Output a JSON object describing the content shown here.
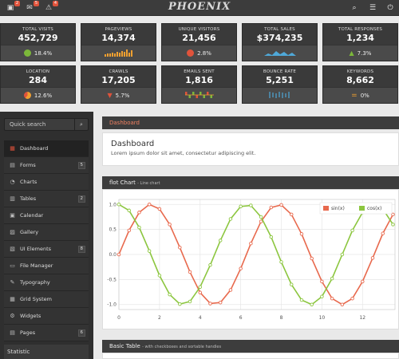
{
  "app": {
    "brand": "PHOENIX"
  },
  "topbar": {
    "left_icons": [
      {
        "name": "inbox-icon",
        "badge": "2"
      },
      {
        "name": "messages-icon",
        "badge": "5"
      },
      {
        "name": "notifications-icon",
        "badge": "4"
      }
    ],
    "right_icons": [
      "search-icon",
      "settings-icon",
      "logout-icon"
    ]
  },
  "stats": [
    {
      "label": "TOTAL VISITS",
      "value": "452,729",
      "foot": "18.4%",
      "indicator": "dot",
      "color": "#7cb83a"
    },
    {
      "label": "PAGEVIEWS",
      "value": "14,374",
      "foot": "",
      "indicator": "bars",
      "color": "#f0a030",
      "levels": [
        0.3,
        0.5,
        0.4,
        0.6,
        0.5,
        0.7,
        0.6,
        0.8,
        0.7,
        1.0,
        0.6,
        0.9
      ]
    },
    {
      "label": "UNIQUE VISITORS",
      "value": "21,456",
      "foot": "2.8%",
      "indicator": "dot",
      "color": "#e0533b"
    },
    {
      "label": "TOTAL SALES",
      "value": "$374,235",
      "foot": "",
      "indicator": "area",
      "color": "#4fa8d8"
    },
    {
      "label": "TOTAL RESPONSES",
      "value": "1,234",
      "foot": "7.3%",
      "indicator": "triangle-up",
      "color": "#7cb83a"
    },
    {
      "label": "LOCATION",
      "value": "284",
      "foot": "12.6%",
      "indicator": "pie",
      "color": "#f0a030"
    },
    {
      "label": "CRAWLS",
      "value": "17,205",
      "foot": "5.7%",
      "indicator": "triangle-down",
      "color": "#e0533b"
    },
    {
      "label": "EMAILS SENT",
      "value": "1,816",
      "foot": "",
      "indicator": "tristate",
      "color": "#7cb83a"
    },
    {
      "label": "BOUNCE RATE",
      "value": "5,251",
      "foot": "",
      "indicator": "candles",
      "color": "#4fa8d8"
    },
    {
      "label": "KEYWORDS",
      "value": "8,662",
      "foot": "0%",
      "indicator": "equal",
      "color": "#f0a030"
    }
  ],
  "sidebar": {
    "search_placeholder": "Quick search",
    "items": [
      {
        "label": "Dashboard",
        "icon": "dashboard-icon",
        "glyph": "▦",
        "count": "",
        "active": true
      },
      {
        "label": "Forms",
        "icon": "forms-icon",
        "glyph": "▤",
        "count": "5",
        "active": false
      },
      {
        "label": "Charts",
        "icon": "charts-icon",
        "glyph": "◔",
        "count": "",
        "active": false
      },
      {
        "label": "Tables",
        "icon": "tables-icon",
        "glyph": "▥",
        "count": "2",
        "active": false
      },
      {
        "label": "Calendar",
        "icon": "calendar-icon",
        "glyph": "▣",
        "count": "",
        "active": false
      },
      {
        "label": "Gallery",
        "icon": "gallery-icon",
        "glyph": "▨",
        "count": "",
        "active": false
      },
      {
        "label": "UI Elements",
        "icon": "ui-elements-icon",
        "glyph": "▧",
        "count": "8",
        "active": false
      },
      {
        "label": "File Manager",
        "icon": "file-manager-icon",
        "glyph": "▭",
        "count": "",
        "active": false
      },
      {
        "label": "Typography",
        "icon": "typography-icon",
        "glyph": "✎",
        "count": "",
        "active": false
      },
      {
        "label": "Grid System",
        "icon": "grid-icon",
        "glyph": "▦",
        "count": "",
        "active": false
      },
      {
        "label": "Widgets",
        "icon": "widgets-icon",
        "glyph": "⚙",
        "count": "",
        "active": false
      },
      {
        "label": "Pages",
        "icon": "pages-icon",
        "glyph": "▤",
        "count": "6",
        "active": false
      }
    ],
    "statistic_label": "Statistic"
  },
  "breadcrumb": "Dashboard",
  "dashboard_panel": {
    "title": "Dashboard",
    "text": "Lorem ipsum dolor sit amet, consectetur adipiscing elit."
  },
  "chart_panel": {
    "title": "flot Chart",
    "subtitle": "- Line chart"
  },
  "table_panel": {
    "title": "Basic Table",
    "subtitle": "- with checkboxes and sortable handles"
  },
  "chart_data": {
    "type": "line",
    "title": "",
    "xlabel": "",
    "ylabel": "",
    "xlim": [
      0,
      13.6
    ],
    "ylim": [
      -1.1,
      1.1
    ],
    "xticks": [
      0,
      2,
      4,
      6,
      8,
      10,
      12
    ],
    "yticks": [
      1.0,
      0.5,
      0.0,
      -0.5,
      -1.0
    ],
    "ytick_labels": [
      "1.0",
      "0.5",
      "0.0",
      "-0.5",
      "-1.0"
    ],
    "grid": true,
    "legend": "top-right",
    "series": [
      {
        "name": "sin(x)",
        "color": "#e8694d",
        "x": [
          0,
          0.5,
          1,
          1.5,
          2,
          2.5,
          3,
          3.5,
          4,
          4.5,
          5,
          5.5,
          6,
          6.5,
          7,
          7.5,
          8,
          8.5,
          9,
          9.5,
          10,
          10.5,
          11,
          11.5,
          12,
          12.5,
          13,
          13.5
        ],
        "y": [
          0,
          0.48,
          0.84,
          1.0,
          0.91,
          0.6,
          0.14,
          -0.35,
          -0.76,
          -0.98,
          -0.96,
          -0.71,
          -0.28,
          0.22,
          0.66,
          0.94,
          0.99,
          0.8,
          0.41,
          -0.08,
          -0.54,
          -0.88,
          -1.0,
          -0.88,
          -0.54,
          -0.07,
          0.42,
          0.8
        ]
      },
      {
        "name": "cos(x)",
        "color": "#8cc63f",
        "x": [
          0,
          0.5,
          1,
          1.5,
          2,
          2.5,
          3,
          3.5,
          4,
          4.5,
          5,
          5.5,
          6,
          6.5,
          7,
          7.5,
          8,
          8.5,
          9,
          9.5,
          10,
          10.5,
          11,
          11.5,
          12,
          12.5,
          13,
          13.5
        ],
        "y": [
          1.0,
          0.88,
          0.54,
          0.07,
          -0.42,
          -0.8,
          -0.99,
          -0.94,
          -0.65,
          -0.21,
          0.28,
          0.71,
          0.96,
          0.98,
          0.75,
          0.35,
          -0.15,
          -0.6,
          -0.91,
          -1.0,
          -0.84,
          -0.48,
          0.0,
          0.48,
          0.84,
          1.0,
          0.91,
          0.6
        ]
      }
    ]
  }
}
